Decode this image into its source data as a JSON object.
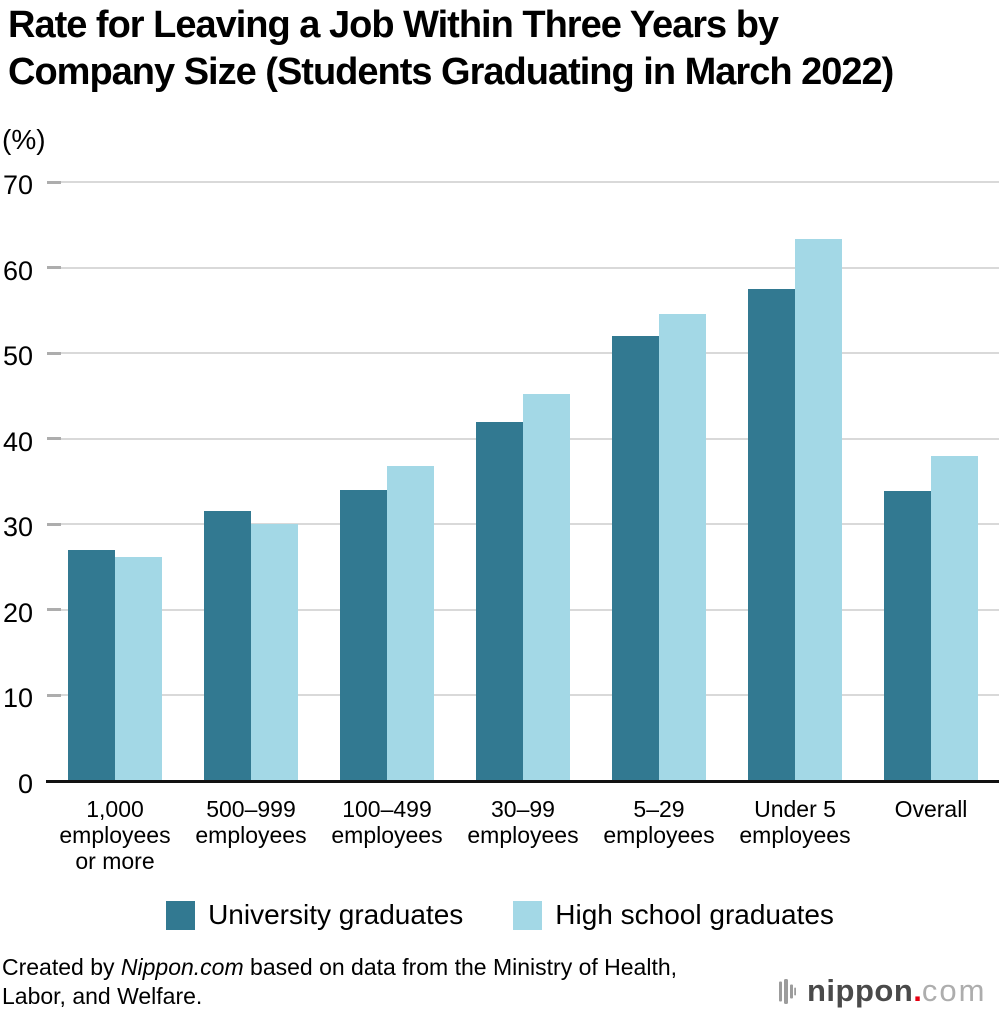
{
  "title": {
    "line1": "Rate for Leaving a Job Within Three Years by",
    "line2": "Company Size (Students Graduating in March 2022)"
  },
  "chart_data": {
    "type": "bar",
    "title": "Rate for Leaving a Job Within Three Years by Company Size (Students Graduating in March 2022)",
    "xlabel": "",
    "ylabel": "(%)",
    "ylim": [
      0,
      70
    ],
    "yticks": [
      0,
      10,
      20,
      30,
      40,
      50,
      60,
      70
    ],
    "grid": true,
    "legend_position": "bottom",
    "categories": [
      "1,000\nemployees\nor more",
      "500–999\nemployees",
      "100–499\nemployees",
      "30–99\nemployees",
      "5–29\nemployees",
      "Under 5\nemployees",
      "Overall"
    ],
    "series": [
      {
        "name": "University graduates",
        "color": "#327991",
        "values": [
          27.0,
          31.6,
          34.0,
          41.9,
          52.0,
          57.5,
          33.9
        ]
      },
      {
        "name": "High school graduates",
        "color": "#A3D8E6",
        "values": [
          26.2,
          30.0,
          36.8,
          45.2,
          54.6,
          63.3,
          38.0
        ]
      }
    ]
  },
  "footer": {
    "line1_pre": "Created by ",
    "line1_italic": "Nippon.com",
    "line1_post": " based on data from the Ministry of Health,",
    "line2": "Labor, and Welfare."
  },
  "logo": {
    "name": "nippon",
    "dot": ".",
    "suffix": "com",
    "icon": "soundwave-bars-icon",
    "colors": {
      "name": "#4A4A4A",
      "dot": "#E60012",
      "suffix": "#ADADAD",
      "icon": "#9C9C9C"
    }
  },
  "colors": {
    "university_bar": "#327991",
    "high_school_bar": "#A3D8E6",
    "gridline": "#D9D9D9",
    "axis": "#111111",
    "background": "#FFFFFF"
  }
}
